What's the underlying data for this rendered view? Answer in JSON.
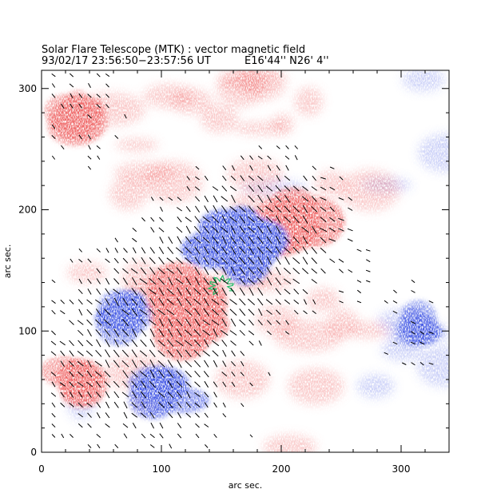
{
  "figure": {
    "title": "Solar Flare Telescope (MTK) : vector magnetic field",
    "time_line": "93/02/17  23:56:50−23:57:56 UT",
    "position_line": "E16'44''  N26' 4''"
  },
  "chart_data": {
    "type": "heatmap",
    "title": "Solar Flare Telescope (MTK) : vector magnetic field",
    "xlabel": "arc sec.",
    "ylabel": "arc sec.",
    "xlim": [
      0,
      340
    ],
    "ylim": [
      0,
      315
    ],
    "x_ticks": [
      0,
      100,
      200,
      300
    ],
    "y_ticks": [
      0,
      100,
      200,
      300
    ],
    "colors": {
      "positive_polarity": "#f06a6a",
      "negative_polarity": "#4a5ee6",
      "transverse_field_vectors": "#000000",
      "contour": "#1fbf6a",
      "background": "#ffffff"
    },
    "negative_polarity_regions": [
      {
        "x": 165,
        "y": 170,
        "strength": 1.0
      },
      {
        "x": 105,
        "y": 50,
        "strength": 0.55
      },
      {
        "x": 65,
        "y": 115,
        "strength": 0.5
      },
      {
        "x": 320,
        "y": 100,
        "strength": 0.35
      }
    ],
    "positive_polarity_regions": [
      {
        "x": 120,
        "y": 120,
        "strength": 0.9
      },
      {
        "x": 210,
        "y": 185,
        "strength": 0.7
      },
      {
        "x": 30,
        "y": 280,
        "strength": 0.4
      },
      {
        "x": 30,
        "y": 60,
        "strength": 0.45
      }
    ],
    "contour_center": [
      150,
      137
    ]
  }
}
